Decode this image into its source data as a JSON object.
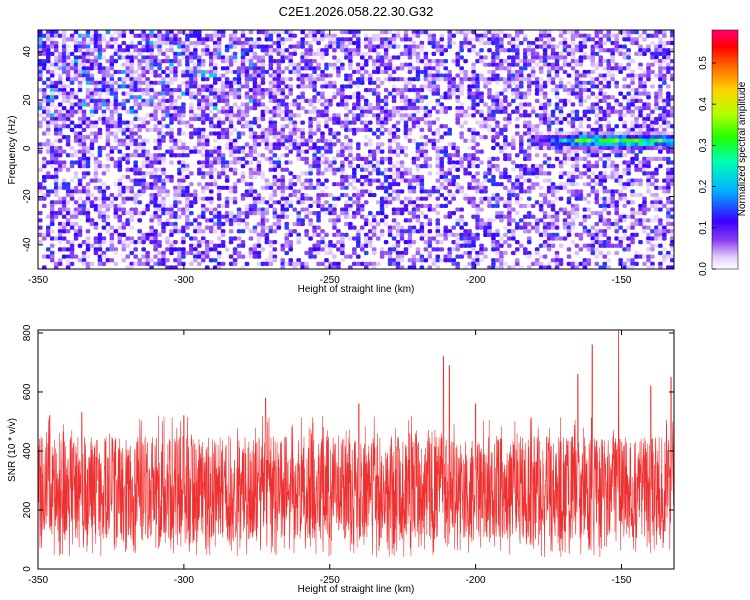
{
  "title": "C2E1.2026.058.22.30.G32",
  "chart_data": [
    {
      "type": "heatmap",
      "xlabel": "Height of straight line (km)",
      "ylabel": "Frequency (Hz)",
      "xlim": [
        -350,
        -132
      ],
      "ylim": [
        -50,
        49
      ],
      "xticks": [
        -350,
        -300,
        -250,
        -200,
        -150
      ],
      "yticks": [
        -40,
        -20,
        0,
        20,
        40
      ],
      "colorbar": {
        "label": "Normalized spectral amplitude",
        "range": [
          0,
          0.58
        ],
        "ticks": [
          0,
          0.1,
          0.2,
          0.3,
          0.4,
          0.5
        ],
        "tick_labels": [
          "0.0",
          "0.1",
          "0.2",
          "0.3",
          "0.4",
          "0.5"
        ]
      },
      "signal_trace": {
        "x_start": -185,
        "x_end": -132,
        "frequency_center": 3,
        "peak_amplitude": 0.35
      },
      "grid": false
    },
    {
      "type": "line",
      "xlabel": "Height of straight line (km)",
      "ylabel": "SNR (10 * v/v)",
      "xlim": [
        -350,
        -132
      ],
      "ylim": [
        0,
        810
      ],
      "xticks": [
        -350,
        -300,
        -250,
        -200,
        -150
      ],
      "yticks": [
        0,
        200,
        400,
        600,
        800
      ],
      "typical_range": [
        100,
        450
      ],
      "notable_peaks": [
        {
          "x": -346,
          "y": 520
        },
        {
          "x": -335,
          "y": 530
        },
        {
          "x": -300,
          "y": 520
        },
        {
          "x": -272,
          "y": 580
        },
        {
          "x": -240,
          "y": 560
        },
        {
          "x": -211,
          "y": 720
        },
        {
          "x": -209,
          "y": 690
        },
        {
          "x": -200,
          "y": 560
        },
        {
          "x": -165,
          "y": 660
        },
        {
          "x": -160,
          "y": 760
        },
        {
          "x": -151,
          "y": 810
        },
        {
          "x": -140,
          "y": 620
        },
        {
          "x": -133,
          "y": 650
        }
      ],
      "color": "#ef3030",
      "grid": false
    }
  ]
}
